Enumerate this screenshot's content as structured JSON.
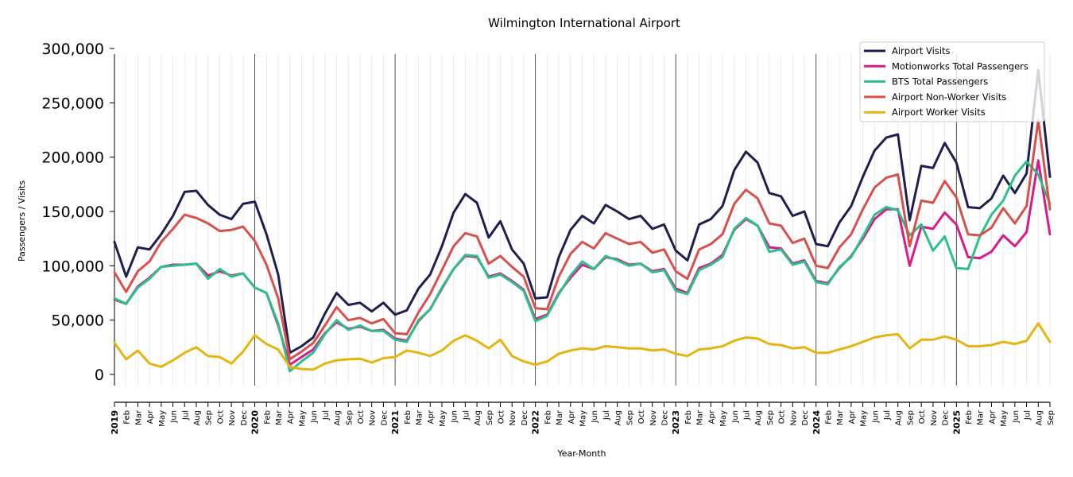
{
  "chart_data": {
    "type": "line",
    "title": "Wilmington International Airport",
    "xlabel": "Year-Month",
    "ylabel": "Passengers / Visits",
    "ylim": [
      0,
      300000
    ],
    "yticks": [
      0,
      50000,
      100000,
      150000,
      200000,
      250000,
      300000
    ],
    "ytick_labels": [
      "0",
      "50,000",
      "100,000",
      "150,000",
      "200,000",
      "250,000",
      "300,000"
    ],
    "legend_position": "top-right",
    "x": [
      "2019",
      "Feb",
      "Mar",
      "Apr",
      "May",
      "Jun",
      "Jul",
      "Aug",
      "Sep",
      "Oct",
      "Nov",
      "Dec",
      "2020",
      "Feb",
      "Mar",
      "Apr",
      "May",
      "Jun",
      "Jul",
      "Aug",
      "Sep",
      "Oct",
      "Nov",
      "Dec",
      "2021",
      "Feb",
      "Mar",
      "Apr",
      "May",
      "Jun",
      "Jul",
      "Aug",
      "Sep",
      "Oct",
      "Nov",
      "Dec",
      "2022",
      "Feb",
      "Mar",
      "Apr",
      "May",
      "Jun",
      "Jul",
      "Aug",
      "Sep",
      "Oct",
      "Nov",
      "Dec",
      "2023",
      "Feb",
      "Mar",
      "Apr",
      "May",
      "Jun",
      "Jul",
      "Aug",
      "Sep",
      "Oct",
      "Nov",
      "Dec",
      "2024",
      "Feb",
      "Mar",
      "Apr",
      "May",
      "Jun",
      "Jul",
      "Aug",
      "Sep",
      "Oct",
      "Nov",
      "Dec",
      "2025",
      "Feb",
      "Mar",
      "Apr",
      "May",
      "Jun",
      "Jul",
      "Aug",
      "Sep"
    ],
    "series": [
      {
        "name": "Airport Visits",
        "color": "#1f1f4f",
        "values": [
          122000,
          90000,
          117000,
          115000,
          129000,
          146000,
          168000,
          169000,
          156000,
          147000,
          143000,
          157000,
          159000,
          129000,
          92000,
          20000,
          26000,
          34000,
          56000,
          75000,
          64000,
          66000,
          58000,
          66000,
          55000,
          59000,
          79000,
          92000,
          118000,
          149000,
          166000,
          158000,
          126000,
          141000,
          115000,
          102000,
          70000,
          71000,
          108000,
          133000,
          146000,
          139000,
          156000,
          150000,
          143000,
          146000,
          134000,
          138000,
          114000,
          105000,
          138000,
          143000,
          155000,
          188000,
          205000,
          195000,
          167000,
          164000,
          146000,
          150000,
          120000,
          118000,
          140000,
          155000,
          182000,
          206000,
          218000,
          221000,
          142000,
          192000,
          190000,
          213000,
          195000,
          154000,
          153000,
          162000,
          183000,
          167000,
          185000,
          280000,
          182000
        ]
      },
      {
        "name": "Motionworks Total Passengers",
        "color": "#d81b8c",
        "values": [
          69000,
          65000,
          81000,
          89000,
          99000,
          101000,
          101000,
          102000,
          91000,
          95000,
          91000,
          93000,
          80000,
          75000,
          45000,
          9000,
          16000,
          23000,
          38000,
          48000,
          42000,
          44000,
          40000,
          41000,
          33000,
          31000,
          49000,
          60000,
          79000,
          97000,
          109000,
          108000,
          90000,
          93000,
          86000,
          78000,
          51000,
          55000,
          75000,
          89000,
          101000,
          97000,
          108000,
          106000,
          101000,
          102000,
          95000,
          97000,
          79000,
          75000,
          98000,
          102000,
          110000,
          133000,
          143000,
          137000,
          117000,
          116000,
          102000,
          105000,
          86000,
          84000,
          98000,
          109000,
          125000,
          143000,
          152000,
          152000,
          100000,
          136000,
          134000,
          149000,
          138000,
          108000,
          107000,
          113000,
          128000,
          118000,
          131000,
          197000,
          129000
        ]
      },
      {
        "name": "BTS Total Passengers",
        "color": "#2bc08a",
        "values": [
          70000,
          65000,
          80000,
          88000,
          99000,
          100000,
          101000,
          102000,
          88000,
          97000,
          90000,
          93000,
          80000,
          75000,
          47000,
          3000,
          12000,
          20000,
          37000,
          50000,
          41000,
          45000,
          40000,
          40000,
          32000,
          30000,
          50000,
          60000,
          80000,
          97000,
          110000,
          109000,
          89000,
          92000,
          85000,
          77000,
          49000,
          54000,
          74000,
          91000,
          104000,
          97000,
          109000,
          105000,
          100000,
          102000,
          94000,
          96000,
          77000,
          74000,
          96000,
          101000,
          108000,
          134000,
          144000,
          137000,
          113000,
          115000,
          101000,
          104000,
          85000,
          83000,
          99000,
          108000,
          127000,
          147000,
          154000,
          151000,
          128000,
          138000,
          114000,
          127000,
          98000,
          97000,
          127000,
          147000,
          160000,
          183000,
          196000,
          184000,
          157000
        ]
      },
      {
        "name": "Airport Non-Worker Visits",
        "color": "#d9504a",
        "values": [
          94000,
          76000,
          95000,
          104000,
          122000,
          134000,
          147000,
          144000,
          139000,
          132000,
          133000,
          136000,
          123000,
          101000,
          70000,
          14000,
          21000,
          29000,
          45000,
          62000,
          50000,
          52000,
          47000,
          51000,
          38000,
          37000,
          57000,
          74000,
          96000,
          118000,
          130000,
          127000,
          102000,
          109000,
          99000,
          90000,
          61000,
          60000,
          90000,
          111000,
          122000,
          116000,
          130000,
          125000,
          120000,
          122000,
          112000,
          115000,
          95000,
          88000,
          115000,
          120000,
          129000,
          157000,
          170000,
          162000,
          139000,
          137000,
          121000,
          125000,
          100000,
          98000,
          117000,
          129000,
          152000,
          172000,
          181000,
          184000,
          118000,
          160000,
          158000,
          178000,
          163000,
          129000,
          128000,
          135000,
          153000,
          139000,
          155000,
          234000,
          152000
        ]
      },
      {
        "name": "Airport Worker Visits",
        "color": "#e5b40f",
        "values": [
          29000,
          14000,
          22000,
          10000,
          7000,
          13000,
          20000,
          25000,
          17000,
          16000,
          10000,
          21000,
          36000,
          28000,
          23000,
          7000,
          5000,
          4500,
          10000,
          13000,
          14000,
          14500,
          11000,
          15000,
          16000,
          22000,
          20000,
          17000,
          22000,
          31000,
          36000,
          31000,
          24000,
          32000,
          17000,
          12000,
          9000,
          12000,
          19000,
          22000,
          24000,
          23000,
          26000,
          25000,
          24000,
          24000,
          22000,
          23000,
          19000,
          17000,
          23000,
          24000,
          26000,
          31000,
          34000,
          33000,
          28000,
          27000,
          24000,
          25000,
          20000,
          20000,
          23000,
          26000,
          30000,
          34000,
          36000,
          37000,
          24000,
          32000,
          32000,
          35000,
          32000,
          26000,
          26000,
          27000,
          30000,
          28000,
          31000,
          47000,
          30000
        ]
      }
    ]
  }
}
